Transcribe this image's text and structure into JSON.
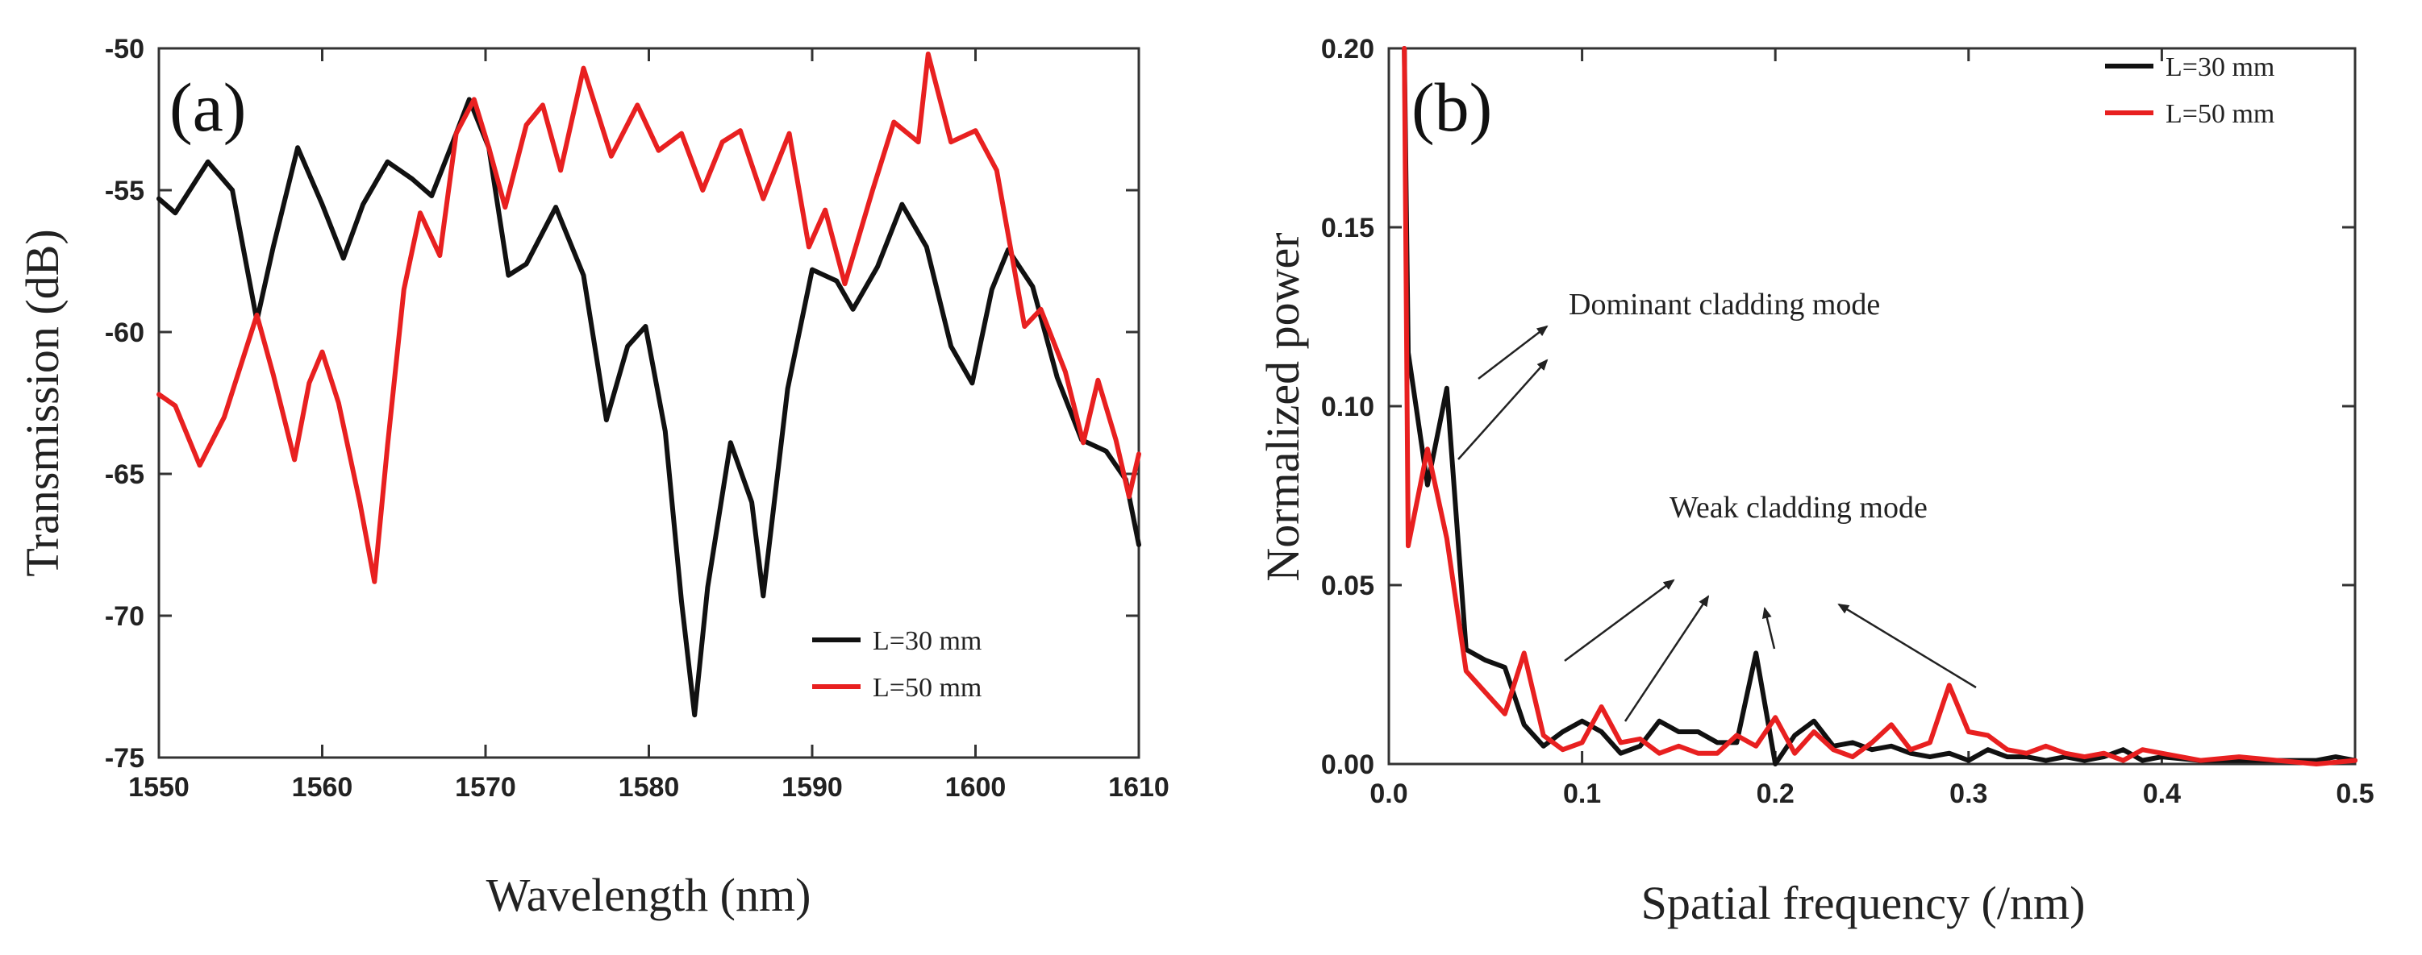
{
  "chart_data": [
    {
      "type": "line",
      "panel_label": "(a)",
      "title": "",
      "xlabel": "Wavelength (nm)",
      "ylabel": "Transmission (dB)",
      "xlim": [
        1550,
        1610
      ],
      "ylim": [
        -75,
        -50
      ],
      "xticks": [
        1550,
        1560,
        1570,
        1580,
        1590,
        1600,
        1610
      ],
      "yticks": [
        -50,
        -55,
        -60,
        -65,
        -70,
        -75
      ],
      "legend_position": "bottom-right",
      "series": [
        {
          "name": "L=30 mm",
          "color": "#111111",
          "x": [
            1550,
            1551,
            1553,
            1554.5,
            1556,
            1557,
            1558.5,
            1560,
            1561.3,
            1562.5,
            1564,
            1565.5,
            1566.7,
            1568,
            1569,
            1570.2,
            1571.4,
            1572.5,
            1574.3,
            1576,
            1577.4,
            1578.7,
            1579.8,
            1581,
            1582,
            1582.8,
            1583.6,
            1585,
            1586.3,
            1587,
            1588.5,
            1590,
            1591.5,
            1592.5,
            1594,
            1595.5,
            1597,
            1598.5,
            1599.8,
            1601,
            1602,
            1603.5,
            1605,
            1606.5,
            1608,
            1609.2,
            1610
          ],
          "y": [
            -55.3,
            -55.8,
            -54,
            -55,
            -59.6,
            -57,
            -53.5,
            -55.5,
            -57.4,
            -55.5,
            -54,
            -54.6,
            -55.2,
            -53.3,
            -51.8,
            -53.5,
            -58,
            -57.6,
            -55.6,
            -58,
            -63.1,
            -60.5,
            -59.8,
            -63.5,
            -69.5,
            -73.5,
            -69,
            -63.9,
            -66,
            -69.3,
            -62,
            -57.8,
            -58.2,
            -59.2,
            -57.7,
            -55.5,
            -57,
            -60.5,
            -61.8,
            -58.5,
            -57.1,
            -58.4,
            -61.6,
            -63.8,
            -64.2,
            -65.2,
            -67.5
          ]
        },
        {
          "name": "L=50 mm",
          "color": "#e82020",
          "x": [
            1550,
            1551,
            1552.5,
            1554,
            1556,
            1557,
            1558.3,
            1559.2,
            1560,
            1561,
            1562.3,
            1563.2,
            1564,
            1565,
            1566,
            1567.2,
            1568.2,
            1569.3,
            1570.2,
            1571.2,
            1572.5,
            1573.5,
            1574.6,
            1576,
            1577.7,
            1579.3,
            1580.6,
            1582,
            1583.3,
            1584.5,
            1585.6,
            1587,
            1588.6,
            1589.8,
            1590.8,
            1592,
            1593.7,
            1595,
            1596.5,
            1597.1,
            1598.5,
            1600,
            1601.3,
            1603,
            1604,
            1605.5,
            1606.6,
            1607.5,
            1608.6,
            1609.4,
            1610
          ],
          "y": [
            -62.2,
            -62.6,
            -64.7,
            -63,
            -59.4,
            -61.5,
            -64.5,
            -61.8,
            -60.7,
            -62.5,
            -66,
            -68.8,
            -64,
            -58.5,
            -55.8,
            -57.3,
            -53,
            -51.8,
            -53.5,
            -55.6,
            -52.7,
            -52,
            -54.3,
            -50.7,
            -53.8,
            -52,
            -53.6,
            -53,
            -55,
            -53.3,
            -52.9,
            -55.3,
            -53,
            -57,
            -55.7,
            -58.3,
            -55,
            -52.6,
            -53.3,
            -50.2,
            -53.3,
            -52.9,
            -54.3,
            -59.8,
            -59.2,
            -61.4,
            -63.9,
            -61.7,
            -63.8,
            -65.8,
            -64.3
          ]
        }
      ]
    },
    {
      "type": "line",
      "panel_label": "(b)",
      "title": "",
      "xlabel": "Spatial frequency (/nm)",
      "ylabel": "Normalized power",
      "xlim": [
        0.0,
        0.5
      ],
      "ylim": [
        0.0,
        0.2
      ],
      "xticks": [
        0.0,
        0.1,
        0.2,
        0.3,
        0.4,
        0.5
      ],
      "xtick_labels": [
        "0.0",
        "0.1",
        "0.2",
        "0.3",
        "0.4",
        "0.5"
      ],
      "yticks": [
        0.0,
        0.05,
        0.1,
        0.15,
        0.2
      ],
      "ytick_labels": [
        "0.00",
        "0.05",
        "0.10",
        "0.15",
        "0.20"
      ],
      "legend_position": "top-right",
      "annotations": [
        "Dominant cladding mode",
        "Weak cladding mode"
      ],
      "series": [
        {
          "name": "L=30 mm",
          "color": "#111111",
          "x": [
            0.008,
            0.01,
            0.02,
            0.03,
            0.04,
            0.05,
            0.06,
            0.07,
            0.08,
            0.09,
            0.1,
            0.11,
            0.12,
            0.13,
            0.14,
            0.15,
            0.16,
            0.17,
            0.18,
            0.19,
            0.2,
            0.21,
            0.22,
            0.23,
            0.24,
            0.25,
            0.26,
            0.27,
            0.28,
            0.29,
            0.3,
            0.31,
            0.32,
            0.33,
            0.34,
            0.35,
            0.36,
            0.37,
            0.38,
            0.39,
            0.4,
            0.42,
            0.44,
            0.46,
            0.48,
            0.49,
            0.5
          ],
          "y": [
            0.2,
            0.115,
            0.078,
            0.105,
            0.032,
            0.029,
            0.027,
            0.011,
            0.005,
            0.009,
            0.012,
            0.009,
            0.003,
            0.005,
            0.012,
            0.009,
            0.009,
            0.006,
            0.006,
            0.031,
            0.0,
            0.008,
            0.012,
            0.005,
            0.006,
            0.004,
            0.005,
            0.003,
            0.002,
            0.003,
            0.001,
            0.004,
            0.002,
            0.002,
            0.001,
            0.002,
            0.001,
            0.002,
            0.004,
            0.001,
            0.002,
            0.001,
            0.001,
            0.001,
            0.001,
            0.002,
            0.001
          ]
        },
        {
          "name": "L=50 mm",
          "color": "#e82020",
          "x": [
            0.008,
            0.01,
            0.02,
            0.03,
            0.04,
            0.05,
            0.06,
            0.07,
            0.08,
            0.09,
            0.1,
            0.11,
            0.12,
            0.13,
            0.14,
            0.15,
            0.16,
            0.17,
            0.18,
            0.19,
            0.2,
            0.21,
            0.22,
            0.23,
            0.24,
            0.25,
            0.26,
            0.27,
            0.28,
            0.29,
            0.3,
            0.31,
            0.32,
            0.33,
            0.34,
            0.35,
            0.36,
            0.37,
            0.38,
            0.39,
            0.4,
            0.42,
            0.44,
            0.46,
            0.48,
            0.5
          ],
          "y": [
            0.2,
            0.061,
            0.088,
            0.063,
            0.026,
            0.02,
            0.014,
            0.031,
            0.008,
            0.004,
            0.006,
            0.016,
            0.006,
            0.007,
            0.003,
            0.005,
            0.003,
            0.003,
            0.008,
            0.005,
            0.013,
            0.003,
            0.009,
            0.004,
            0.002,
            0.006,
            0.011,
            0.004,
            0.006,
            0.022,
            0.009,
            0.008,
            0.004,
            0.003,
            0.005,
            0.003,
            0.002,
            0.003,
            0.001,
            0.004,
            0.003,
            0.001,
            0.002,
            0.001,
            0.0,
            0.001
          ]
        }
      ]
    }
  ]
}
